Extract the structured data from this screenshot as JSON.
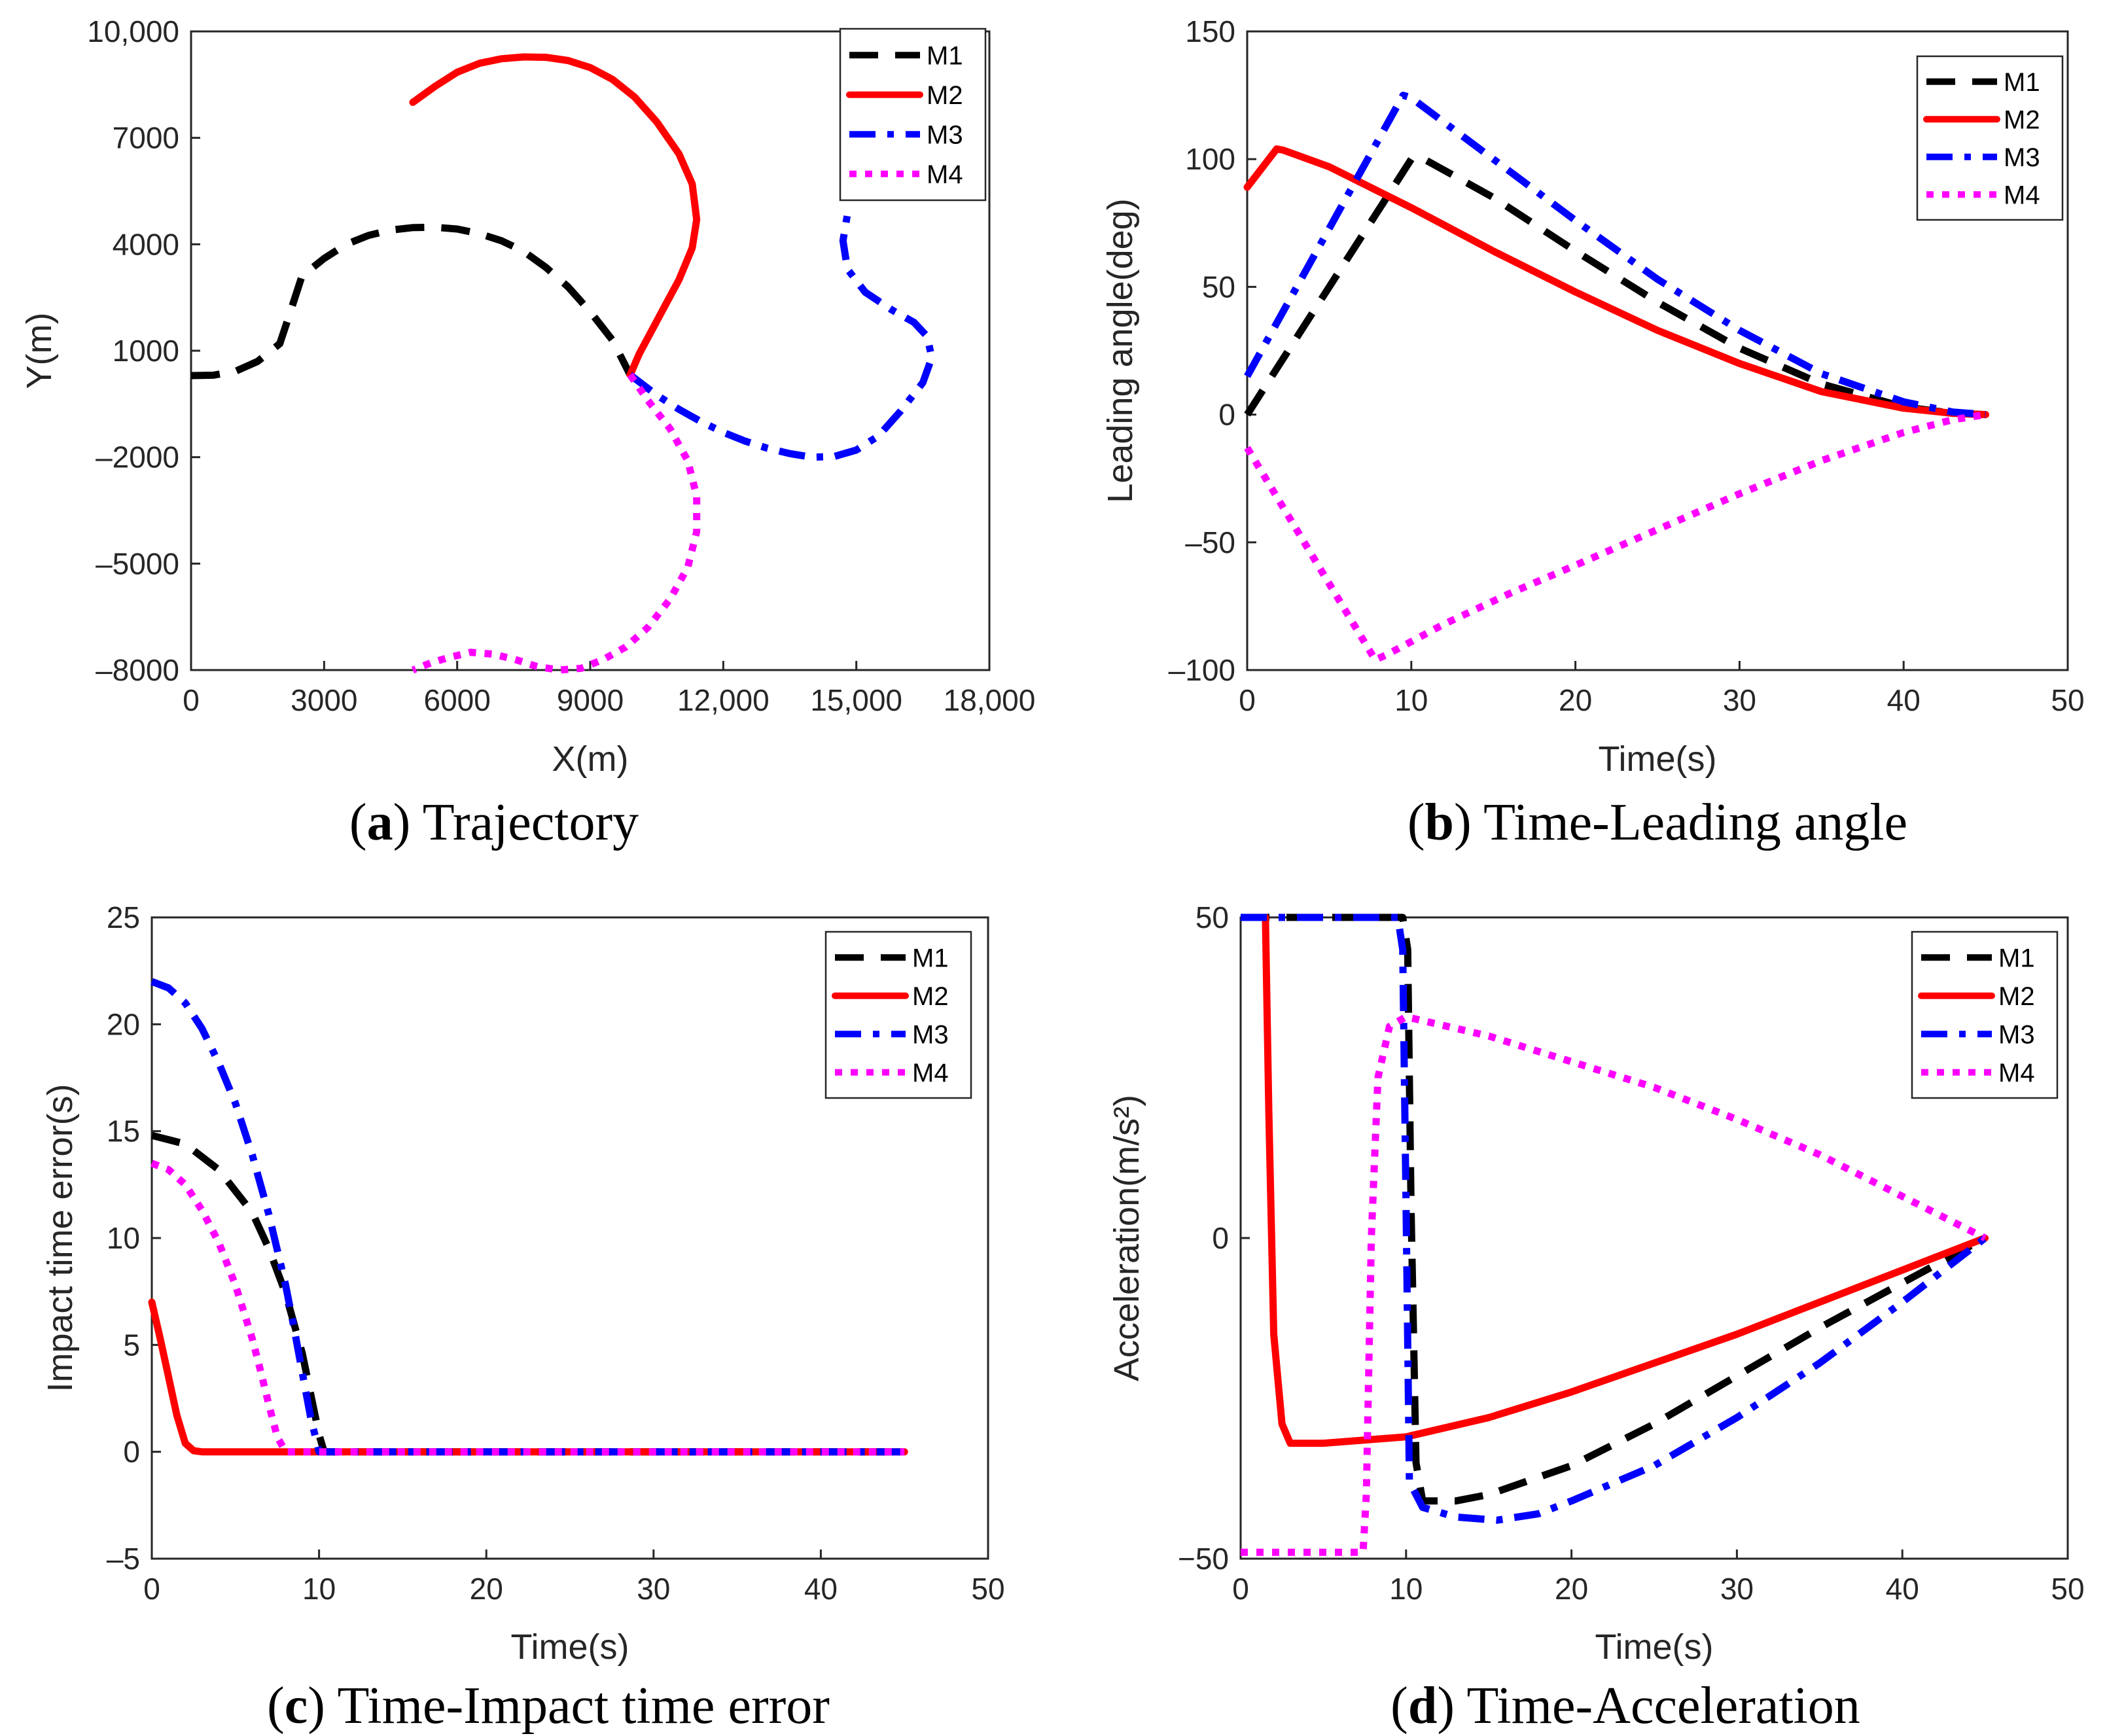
{
  "colors": {
    "M1": "#000000",
    "M2": "#ff0000",
    "M3": "#0000ff",
    "M4": "#ff00ff"
  },
  "series_styles": {
    "M1": "dashed",
    "M2": "solid",
    "M3": "dashdot",
    "M4": "dotted"
  },
  "chart_data": [
    {
      "id": "a",
      "type": "line",
      "caption_letter": "a",
      "caption_text": "Trajectory",
      "xlabel": "X(m)",
      "ylabel": "Y(m)",
      "xlim": [
        0,
        18000
      ],
      "ylim": [
        -8000,
        10000
      ],
      "xticks": [
        0,
        3000,
        6000,
        9000,
        12000,
        15000,
        18000
      ],
      "xtick_labels": [
        "0",
        "3000",
        "6000",
        "9000",
        "12,000",
        "15,000",
        "18,000"
      ],
      "yticks": [
        -8000,
        -5000,
        -2000,
        1000,
        4000,
        7000,
        10000
      ],
      "ytick_labels": [
        "–8000",
        "–5000",
        "–2000",
        "1000",
        "4000",
        "7000",
        "10,000"
      ],
      "legend": "top-right",
      "grid": false,
      "series": [
        {
          "name": "M1",
          "x": [
            0,
            500,
            1000,
            1500,
            2000,
            2200,
            2500,
            3000,
            3500,
            4000,
            4500,
            5000,
            5500,
            6000,
            6500,
            7000,
            7500,
            8000,
            8500,
            9000,
            9500,
            9900
          ],
          "y": [
            300,
            310,
            420,
            700,
            1200,
            1950,
            3100,
            3600,
            4000,
            4250,
            4400,
            4470,
            4480,
            4430,
            4300,
            4100,
            3800,
            3350,
            2800,
            2100,
            1300,
            320
          ]
        },
        {
          "name": "M2",
          "x": [
            5000,
            5500,
            6000,
            6500,
            7000,
            7500,
            8000,
            8500,
            9000,
            9500,
            10000,
            10500,
            11000,
            11300,
            11400,
            11300,
            11000,
            10700,
            10400,
            10100,
            9900
          ],
          "y": [
            8000,
            8450,
            8850,
            9100,
            9230,
            9280,
            9270,
            9180,
            8980,
            8650,
            8150,
            7450,
            6550,
            5700,
            4700,
            3900,
            3000,
            2300,
            1600,
            900,
            320
          ]
        },
        {
          "name": "M3",
          "x": [
            9900,
            10500,
            11000,
            11500,
            12000,
            12500,
            13000,
            13500,
            14000,
            14500,
            15000,
            15500,
            16000,
            16500,
            16700,
            16600,
            16300,
            15800,
            15200,
            14800,
            14700,
            14800
          ],
          "y": [
            320,
            -250,
            -650,
            -1000,
            -1300,
            -1550,
            -1750,
            -1900,
            -2000,
            -1980,
            -1800,
            -1400,
            -700,
            100,
            800,
            1400,
            1800,
            2150,
            2650,
            3300,
            4100,
            4850
          ]
        },
        {
          "name": "M4",
          "x": [
            9900,
            10300,
            10800,
            11200,
            11400,
            11400,
            11200,
            10800,
            10300,
            9800,
            9300,
            8800,
            8300,
            7800,
            7300,
            6800,
            6300,
            5800,
            5400,
            5000
          ],
          "y": [
            320,
            -400,
            -1200,
            -2100,
            -3100,
            -4100,
            -5100,
            -6000,
            -6800,
            -7350,
            -7700,
            -7950,
            -8000,
            -7900,
            -7700,
            -7550,
            -7500,
            -7650,
            -7800,
            -8000
          ]
        }
      ]
    },
    {
      "id": "b",
      "type": "line",
      "caption_letter": "b",
      "caption_text": "Time-Leading angle",
      "xlabel": "Time(s)",
      "ylabel": "Leading angle(deg)",
      "xlim": [
        0,
        50
      ],
      "ylim": [
        -100,
        150
      ],
      "xticks": [
        0,
        10,
        20,
        30,
        40,
        50
      ],
      "xtick_labels": [
        "0",
        "10",
        "20",
        "30",
        "40",
        "50"
      ],
      "yticks": [
        -100,
        -50,
        0,
        50,
        100,
        150
      ],
      "ytick_labels": [
        "–100",
        "–50",
        "0",
        "50",
        "100",
        "150"
      ],
      "legend": "top-right",
      "grid": false,
      "series": [
        {
          "name": "M1",
          "x": [
            0,
            10,
            10.5,
            15,
            20,
            25,
            30,
            35,
            40,
            43,
            45
          ],
          "y": [
            0,
            100,
            101,
            85,
            64,
            44,
            26,
            12,
            3,
            0.5,
            0
          ]
        },
        {
          "name": "M2",
          "x": [
            0,
            1.8,
            2.2,
            5,
            10,
            15,
            20,
            25,
            30,
            35,
            40,
            43,
            45
          ],
          "y": [
            89,
            104,
            103.5,
            97,
            81,
            64,
            48,
            33,
            20,
            9,
            2.5,
            0.5,
            0
          ]
        },
        {
          "name": "M3",
          "x": [
            0,
            9.5,
            10,
            15,
            20,
            25,
            30,
            35,
            40,
            43,
            45
          ],
          "y": [
            15,
            125,
            124,
            100,
            76,
            53,
            33,
            16,
            5,
            1,
            0
          ]
        },
        {
          "name": "M4",
          "x": [
            0,
            7.8,
            8.5,
            12,
            16,
            20,
            25,
            30,
            35,
            40,
            43,
            45
          ],
          "y": [
            -13,
            -96,
            -94,
            -82,
            -70,
            -59,
            -45,
            -31,
            -18,
            -7,
            -2,
            0
          ]
        }
      ]
    },
    {
      "id": "c",
      "type": "line",
      "caption_letter": "c",
      "caption_text": "Time-Impact time error",
      "xlabel": "Time(s)",
      "ylabel": "Impact time error(s)",
      "xlim": [
        0,
        50
      ],
      "ylim": [
        -5,
        25
      ],
      "xticks": [
        0,
        10,
        20,
        30,
        40,
        50
      ],
      "xtick_labels": [
        "0",
        "10",
        "20",
        "30",
        "40",
        "50"
      ],
      "yticks": [
        -5,
        0,
        5,
        10,
        15,
        20,
        25
      ],
      "ytick_labels": [
        "–5",
        "0",
        "5",
        "10",
        "15",
        "20",
        "25"
      ],
      "legend": "top-right",
      "grid": false,
      "series": [
        {
          "name": "M1",
          "x": [
            0,
            2,
            4,
            6,
            7,
            8,
            9,
            9.5,
            10,
            10.3,
            45
          ],
          "y": [
            14.8,
            14.4,
            13.2,
            11.2,
            9.5,
            7.4,
            4.6,
            2.7,
            0.8,
            0,
            0
          ]
        },
        {
          "name": "M2",
          "x": [
            0,
            0.5,
            1,
            1.5,
            2,
            2.5,
            3,
            45
          ],
          "y": [
            7,
            5.3,
            3.5,
            1.7,
            0.4,
            0.05,
            0,
            0
          ]
        },
        {
          "name": "M3",
          "x": [
            0,
            1,
            2,
            3,
            4,
            5,
            6,
            7,
            8,
            8.5,
            9,
            9.5,
            10,
            45
          ],
          "y": [
            22,
            21.7,
            21,
            19.8,
            18.2,
            16.3,
            13.9,
            11.1,
            7.8,
            5.8,
            3.7,
            1.6,
            0,
            0
          ]
        },
        {
          "name": "M4",
          "x": [
            0,
            1,
            2,
            3,
            4,
            5,
            6,
            6.5,
            7,
            7.5,
            8,
            45
          ],
          "y": [
            13.5,
            13.2,
            12.5,
            11.3,
            9.8,
            7.8,
            5.3,
            3.8,
            2.2,
            0.7,
            0,
            0
          ]
        }
      ]
    },
    {
      "id": "d",
      "type": "line",
      "caption_letter": "d",
      "caption_text": "Time-Acceleration",
      "xlabel": "Time(s)",
      "ylabel": "Acceleration(m/s²)",
      "xlim": [
        0,
        50
      ],
      "ylim": [
        -50,
        50
      ],
      "xticks": [
        0,
        10,
        20,
        30,
        40,
        50
      ],
      "xtick_labels": [
        "0",
        "10",
        "20",
        "30",
        "40",
        "50"
      ],
      "yticks": [
        -50,
        0,
        50
      ],
      "ytick_labels": [
        "−50",
        "0",
        "50"
      ],
      "legend": "top-right",
      "grid": false,
      "series": [
        {
          "name": "M1",
          "x": [
            0,
            9.8,
            10.1,
            10.3,
            10.6,
            11,
            13,
            15,
            20,
            25,
            30,
            35,
            40,
            45
          ],
          "y": [
            50,
            50,
            45,
            5,
            -35,
            -41,
            -41,
            -40,
            -35.5,
            -29,
            -21.5,
            -14,
            -7,
            0
          ]
        },
        {
          "name": "M2",
          "x": [
            1.5,
            1.7,
            2,
            2.5,
            3,
            5,
            10,
            15,
            20,
            25,
            30,
            35,
            40,
            45
          ],
          "y": [
            50,
            20,
            -15,
            -29,
            -32,
            -32,
            -31,
            -28,
            -24,
            -19.5,
            -15,
            -10,
            -5,
            0
          ]
        },
        {
          "name": "M3",
          "x": [
            0,
            9.5,
            9.8,
            10,
            10.2,
            11,
            13,
            15.5,
            18,
            20,
            25,
            30,
            35,
            40,
            45
          ],
          "y": [
            50,
            50,
            45,
            5,
            -38,
            -42,
            -43.5,
            -44,
            -43,
            -41,
            -35.5,
            -28,
            -19.5,
            -10,
            0
          ]
        },
        {
          "name": "M4",
          "x": [
            0,
            7.4,
            7.6,
            7.9,
            8.3,
            9,
            10,
            15,
            20,
            25,
            30,
            35,
            40,
            45
          ],
          "y": [
            -49,
            -49,
            -40,
            0,
            25,
            33,
            34.5,
            31.5,
            27.5,
            23.5,
            18.5,
            13,
            6.5,
            0
          ]
        }
      ]
    }
  ]
}
